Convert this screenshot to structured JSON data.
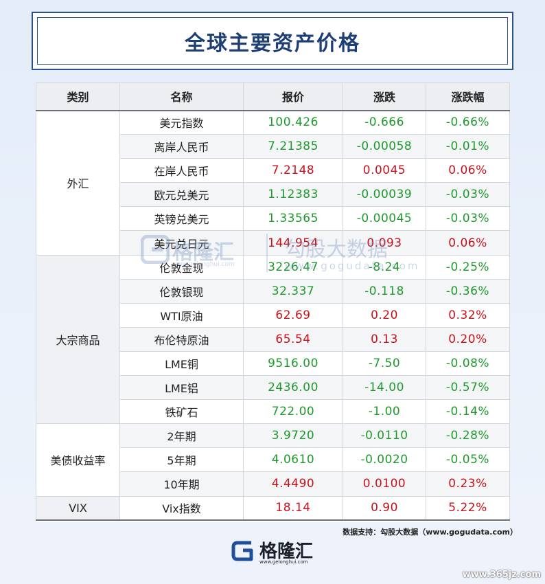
{
  "title": "全球主要资产价格",
  "columns": [
    "类别",
    "名称",
    "报价",
    "涨跌",
    "涨跌幅"
  ],
  "groups": [
    {
      "category": "外汇",
      "rows": [
        {
          "name": "美元指数",
          "price": "100.426",
          "change": "-0.666",
          "pct": "-0.66%",
          "dir": "down"
        },
        {
          "name": "离岸人民币",
          "price": "7.21385",
          "change": "-0.00058",
          "pct": "-0.01%",
          "dir": "down"
        },
        {
          "name": "在岸人民币",
          "price": "7.2148",
          "change": "0.0045",
          "pct": "0.06%",
          "dir": "up"
        },
        {
          "name": "欧元兑美元",
          "price": "1.12383",
          "change": "-0.00039",
          "pct": "-0.03%",
          "dir": "down"
        },
        {
          "name": "英镑兑美元",
          "price": "1.33565",
          "change": "-0.00045",
          "pct": "-0.03%",
          "dir": "down"
        },
        {
          "name": "美元兑日元",
          "price": "144.954",
          "change": "0.093",
          "pct": "0.06%",
          "dir": "up"
        }
      ]
    },
    {
      "category": "大宗商品",
      "rows": [
        {
          "name": "伦敦金现",
          "price": "3226.47",
          "change": "-8.24",
          "pct": "-0.25%",
          "dir": "down"
        },
        {
          "name": "伦敦银现",
          "price": "32.337",
          "change": "-0.118",
          "pct": "-0.36%",
          "dir": "down"
        },
        {
          "name": "WTI原油",
          "price": "62.69",
          "change": "0.20",
          "pct": "0.32%",
          "dir": "up"
        },
        {
          "name": "布伦特原油",
          "price": "65.54",
          "change": "0.13",
          "pct": "0.20%",
          "dir": "up"
        },
        {
          "name": "LME铜",
          "price": "9516.00",
          "change": "-7.50",
          "pct": "-0.08%",
          "dir": "down"
        },
        {
          "name": "LME铝",
          "price": "2436.00",
          "change": "-14.00",
          "pct": "-0.57%",
          "dir": "down"
        },
        {
          "name": "铁矿石",
          "price": "722.00",
          "change": "-1.00",
          "pct": "-0.14%",
          "dir": "down"
        }
      ]
    },
    {
      "category": "美债收益率",
      "rows": [
        {
          "name": "2年期",
          "price": "3.9720",
          "change": "-0.0110",
          "pct": "-0.28%",
          "dir": "down"
        },
        {
          "name": "5年期",
          "price": "4.0610",
          "change": "-0.0020",
          "pct": "-0.05%",
          "dir": "down"
        },
        {
          "name": "10年期",
          "price": "4.4490",
          "change": "0.0100",
          "pct": "0.23%",
          "dir": "up"
        }
      ]
    },
    {
      "category": "VIX",
      "rows": [
        {
          "name": "Vix指数",
          "price": "18.14",
          "change": "0.90",
          "pct": "5.22%",
          "dir": "up"
        }
      ]
    }
  ],
  "source": "数据支持：勾股大数据（www.gogudata.com）",
  "watermark": {
    "brand": "格隆汇",
    "brand_url": "www.gelonghui.com",
    "partner": "勾股大数据",
    "partner_url": "www.gogudata.com"
  },
  "footer": {
    "brand": "格隆汇",
    "url": "www.gelonghui.com"
  },
  "corner_watermark": "www.365jz.com",
  "colors": {
    "up": "#c8121b",
    "down": "#1e9a2c",
    "title": "#1d3f75",
    "frame": "#2b4f87"
  }
}
